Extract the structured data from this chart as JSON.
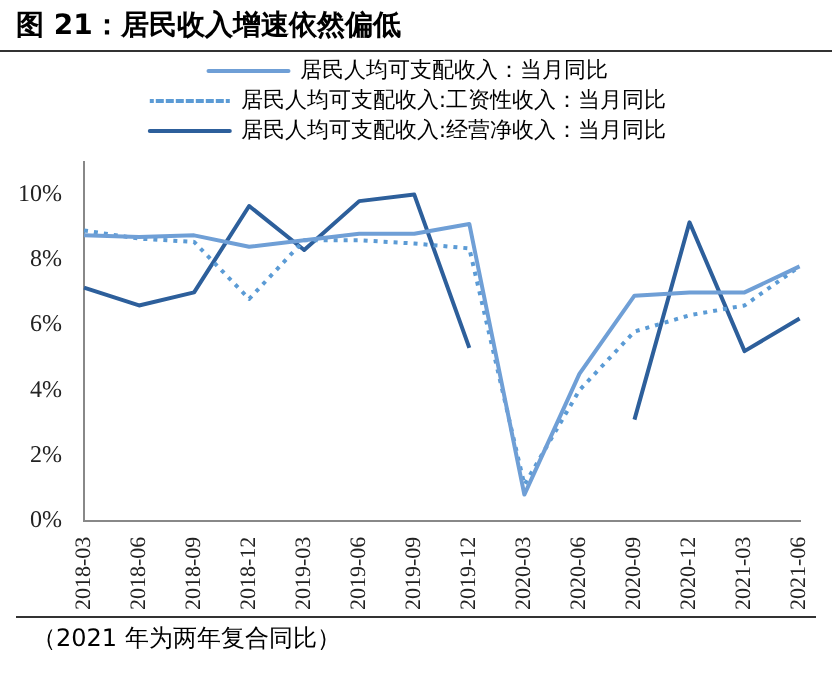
{
  "chart_data": {
    "type": "line",
    "title": "图 21：居民收入增速依然偏低",
    "annotations": [
      "（2021 年为两年复合同比）"
    ],
    "categories": [
      "2018-03",
      "2018-06",
      "2018-09",
      "2018-12",
      "2019-03",
      "2019-06",
      "2019-09",
      "2019-12",
      "2020-03",
      "2020-06",
      "2020-09",
      "2020-12",
      "2021-03",
      "2021-06"
    ],
    "series": [
      {
        "name": "居民人均可支配收入：当月同比",
        "color": "#6f9fd6",
        "line_style": "solid",
        "values": [
          8.75,
          8.7,
          8.75,
          8.4,
          8.6,
          8.8,
          8.8,
          9.1,
          0.8,
          4.5,
          6.9,
          7.0,
          7.0,
          7.8
        ]
      },
      {
        "name": "居民人均可支配收入:工资性收入：当月同比",
        "color": "#5b9bd5",
        "line_style": "dotted",
        "values": [
          8.9,
          8.65,
          8.55,
          6.8,
          8.6,
          8.6,
          8.5,
          8.35,
          1.1,
          4.0,
          5.8,
          6.3,
          6.6,
          7.8
        ]
      },
      {
        "name": "居民人均可支配收入:经营净收入：当月同比",
        "color": "#2d5f9b",
        "line_style": "solid",
        "values": [
          7.15,
          6.6,
          7.0,
          9.65,
          8.3,
          9.8,
          10.0,
          5.3,
          null,
          null,
          3.1,
          9.15,
          5.2,
          6.2
        ]
      }
    ],
    "ylim": [
      0,
      11
    ],
    "yticks": [
      {
        "value": 0,
        "label": "0%"
      },
      {
        "value": 2,
        "label": "2%"
      },
      {
        "value": 4,
        "label": "4%"
      },
      {
        "value": 6,
        "label": "6%"
      },
      {
        "value": 8,
        "label": "8%"
      },
      {
        "value": 10,
        "label": "10%"
      }
    ],
    "grid": false,
    "legend": "top",
    "marker": "none"
  }
}
